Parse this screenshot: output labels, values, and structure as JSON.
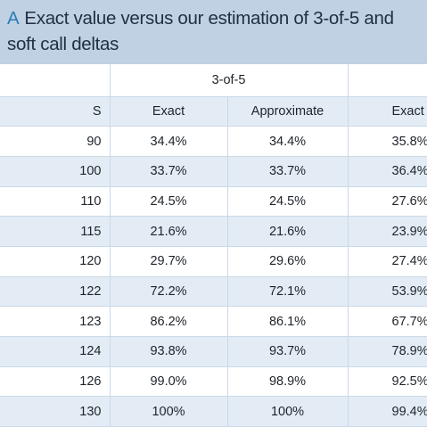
{
  "title": {
    "letter": "A",
    "line1": "Exact value versus our estimation of 3-of-5 and",
    "line2": "soft call deltas"
  },
  "table": {
    "group_headers": [
      "",
      "3-of-5",
      ""
    ],
    "columns": [
      "S",
      "Exact",
      "Approximate",
      "Exact"
    ],
    "rows": [
      [
        "90",
        "34.4%",
        "34.4%",
        "35.8%"
      ],
      [
        "100",
        "33.7%",
        "33.7%",
        "36.4%"
      ],
      [
        "110",
        "24.5%",
        "24.5%",
        "27.6%"
      ],
      [
        "115",
        "21.6%",
        "21.6%",
        "23.9%"
      ],
      [
        "120",
        "29.7%",
        "29.6%",
        "27.4%"
      ],
      [
        "122",
        "72.2%",
        "72.1%",
        "53.9%"
      ],
      [
        "123",
        "86.2%",
        "86.1%",
        "67.7%"
      ],
      [
        "124",
        "93.8%",
        "93.7%",
        "78.9%"
      ],
      [
        "126",
        "99.0%",
        "98.9%",
        "92.5%"
      ],
      [
        "130",
        "100%",
        "100%",
        "99.4%"
      ]
    ]
  },
  "colors": {
    "title_band": "#bfd1e2",
    "title_letter": "#2d7db7",
    "row_band": "#e3ecf5",
    "rule": "#c9d9e8"
  }
}
